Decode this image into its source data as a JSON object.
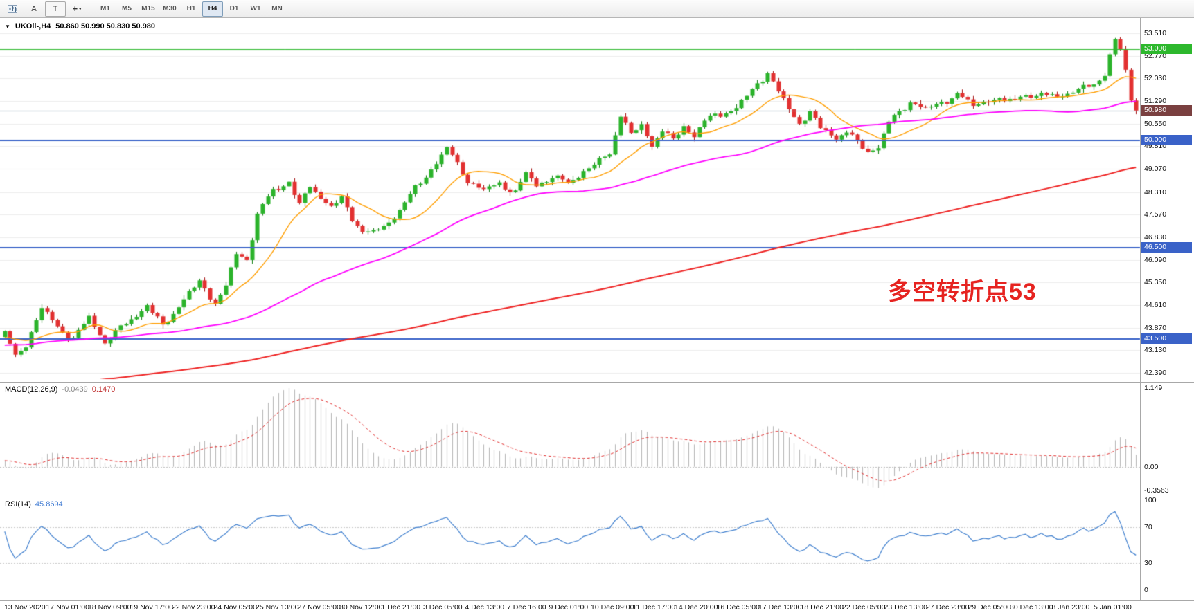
{
  "toolbar": {
    "cursor_button": "A",
    "text_button": "T",
    "crosshair_glyph": "+",
    "caret_glyph": "▾",
    "timeframes": [
      "M1",
      "M5",
      "M15",
      "M30",
      "H1",
      "H4",
      "D1",
      "W1",
      "MN"
    ],
    "active_timeframe": "H4"
  },
  "chart": {
    "dropdown_glyph": "▼",
    "symbol_label": "UKOil-,H4",
    "ohlc": "50.860 50.990 50.830 50.980",
    "annotation": {
      "text": "多空转折点53",
      "color": "#e62320"
    },
    "price_axis": {
      "ticks": [
        "53.510",
        "52.770",
        "52.030",
        "51.290",
        "50.550",
        "49.810",
        "49.070",
        "48.310",
        "47.570",
        "46.830",
        "46.090",
        "45.350",
        "44.610",
        "43.870",
        "43.130",
        "42.390"
      ]
    },
    "levels": [
      {
        "name": "resistance-53",
        "label": "53.000",
        "value": 53.0,
        "line": "#2db82d",
        "badge": "#2db82d",
        "width": 1
      },
      {
        "name": "current-price",
        "label": "50.980",
        "value": 50.98,
        "line": "#8fa3b5",
        "badge": "#7a4040",
        "width": 1
      },
      {
        "name": "support-50",
        "label": "50.000",
        "value": 50.0,
        "line": "#3a62c8",
        "badge": "#3a62c8",
        "width": 2
      },
      {
        "name": "support-46-5",
        "label": "46.500",
        "value": 46.5,
        "line": "#3a62c8",
        "badge": "#3a62c8",
        "width": 2
      },
      {
        "name": "support-43-5",
        "label": "43.500",
        "value": 43.5,
        "line": "#3a62c8",
        "badge": "#3a62c8",
        "width": 2
      }
    ],
    "time_axis": [
      "13 Nov 2020",
      "17 Nov 01:00",
      "18 Nov 09:00",
      "19 Nov 17:00",
      "22 Nov 23:00",
      "24 Nov 05:00",
      "25 Nov 13:00",
      "27 Nov 05:00",
      "30 Nov 12:00",
      "1 Dec 21:00",
      "3 Dec 05:00",
      "4 Dec 13:00",
      "7 Dec 16:00",
      "9 Dec 01:00",
      "10 Dec 09:00",
      "11 Dec 17:00",
      "14 Dec 20:00",
      "16 Dec 05:00",
      "17 Dec 13:00",
      "18 Dec 21:00",
      "22 Dec 05:00",
      "23 Dec 13:00",
      "27 Dec 23:00",
      "29 Dec 05:00",
      "30 Dec 13:00",
      "3 Jan 23:00",
      "5 Jan 01:00"
    ]
  },
  "indicators": {
    "macd": {
      "label": "MACD(12,26,9)",
      "value_main": "-0.0439",
      "value_signal": "0.1470",
      "axis_max": "1.149",
      "axis_zero": "0.00",
      "axis_min": "-0.3563"
    },
    "rsi": {
      "label": "RSI(14)",
      "value": "45.8694",
      "axis": [
        "100",
        "70",
        "30",
        "0"
      ],
      "dashed_levels": [
        70,
        30
      ]
    }
  },
  "chart_data": {
    "type": "candlestick",
    "symbol": "UKOil-",
    "timeframe": "H4",
    "current_price": 50.98,
    "ohlc_display": {
      "open": 50.86,
      "high": 50.99,
      "low": 50.83,
      "close": 50.98
    },
    "candle_count": 216,
    "price_range": [
      42.39,
      53.51
    ],
    "close_anchors": [
      [
        0,
        43.7
      ],
      [
        2,
        42.9
      ],
      [
        4,
        43.35
      ],
      [
        7,
        44.5
      ],
      [
        10,
        43.9
      ],
      [
        13,
        43.5
      ],
      [
        16,
        44.2
      ],
      [
        19,
        43.4
      ],
      [
        23,
        44.0
      ],
      [
        27,
        44.6
      ],
      [
        30,
        43.9
      ],
      [
        33,
        44.6
      ],
      [
        35,
        45.0
      ],
      [
        37,
        45.35
      ],
      [
        40,
        44.7
      ],
      [
        42,
        45.2
      ],
      [
        44,
        46.3
      ],
      [
        46,
        46.1
      ],
      [
        48,
        47.6
      ],
      [
        51,
        48.35
      ],
      [
        54,
        48.65
      ],
      [
        56,
        47.9
      ],
      [
        58,
        48.45
      ],
      [
        60,
        48.2
      ],
      [
        62,
        47.8
      ],
      [
        64,
        48.1
      ],
      [
        66,
        47.4
      ],
      [
        68,
        47.1
      ],
      [
        70,
        46.95
      ],
      [
        73,
        47.3
      ],
      [
        76,
        48.0
      ],
      [
        79,
        48.6
      ],
      [
        82,
        49.3
      ],
      [
        84,
        49.75
      ],
      [
        86,
        49.2
      ],
      [
        88,
        48.7
      ],
      [
        91,
        48.35
      ],
      [
        94,
        48.6
      ],
      [
        97,
        48.3
      ],
      [
        99,
        48.9
      ],
      [
        101,
        48.55
      ],
      [
        104,
        48.8
      ],
      [
        107,
        48.6
      ],
      [
        110,
        49.0
      ],
      [
        113,
        49.3
      ],
      [
        115,
        49.6
      ],
      [
        117,
        50.85
      ],
      [
        119,
        50.2
      ],
      [
        121,
        50.45
      ],
      [
        123,
        49.9
      ],
      [
        125,
        50.3
      ],
      [
        127,
        50.0
      ],
      [
        129,
        50.45
      ],
      [
        131,
        50.2
      ],
      [
        133,
        50.6
      ],
      [
        135,
        50.85
      ],
      [
        137,
        50.9
      ],
      [
        139,
        51.1
      ],
      [
        141,
        51.4
      ],
      [
        143,
        51.9
      ],
      [
        145,
        52.2
      ],
      [
        147,
        51.6
      ],
      [
        149,
        51.0
      ],
      [
        151,
        50.6
      ],
      [
        153,
        50.9
      ],
      [
        155,
        50.4
      ],
      [
        158,
        50.1
      ],
      [
        160,
        50.3
      ],
      [
        162,
        49.9
      ],
      [
        164,
        49.65
      ],
      [
        166,
        49.8
      ],
      [
        168,
        50.6
      ],
      [
        170,
        50.9
      ],
      [
        172,
        51.3
      ],
      [
        175,
        51.0
      ],
      [
        178,
        51.25
      ],
      [
        181,
        51.5
      ],
      [
        184,
        51.15
      ],
      [
        187,
        51.35
      ],
      [
        190,
        51.25
      ],
      [
        193,
        51.5
      ],
      [
        196,
        51.4
      ],
      [
        199,
        51.55
      ],
      [
        202,
        51.45
      ],
      [
        205,
        51.75
      ],
      [
        207,
        51.9
      ],
      [
        209,
        52.1
      ],
      [
        211,
        53.3
      ],
      [
        212,
        53.0
      ],
      [
        213,
        52.3
      ],
      [
        214,
        51.4
      ],
      [
        215,
        50.98
      ]
    ],
    "prehistory_anchors": [
      [
        -210,
        39.3
      ],
      [
        -160,
        40.4
      ],
      [
        -120,
        41.4
      ],
      [
        -80,
        42.4
      ],
      [
        -50,
        43.0
      ],
      [
        -25,
        43.35
      ],
      [
        -1,
        43.6
      ]
    ],
    "noise_amp": 0.14,
    "moving_averages": [
      {
        "name": "ma-fast",
        "period": 13,
        "color": "#ff9e00",
        "width": 1.4
      },
      {
        "name": "ma-medium",
        "period": 55,
        "color": "#ff00ff",
        "width": 1.8
      },
      {
        "name": "ma-slow",
        "period": 200,
        "color": "#ee2222",
        "width": 2.0
      }
    ],
    "horizontal_levels": [
      53.0,
      50.0,
      46.5,
      43.5
    ],
    "macd": {
      "fast": 12,
      "slow": 26,
      "signal": 9,
      "display_main": -0.0439,
      "display_signal": 0.147,
      "axis": [
        1.149,
        0.0,
        -0.3563
      ]
    },
    "rsi": {
      "period": 14,
      "display": 45.8694,
      "axis": [
        100,
        70,
        30,
        0
      ]
    }
  },
  "colors": {
    "bull_fill": "#2bb32b",
    "bull_border": "#0f7d0f",
    "bear_fill": "#e23030",
    "bear_border": "#a31010",
    "grid": "#ececec",
    "macd_hist": "#b4b4b4",
    "macd_signal": "#e03030",
    "rsi_line": "#3f7fce",
    "background": "#ffffff"
  }
}
